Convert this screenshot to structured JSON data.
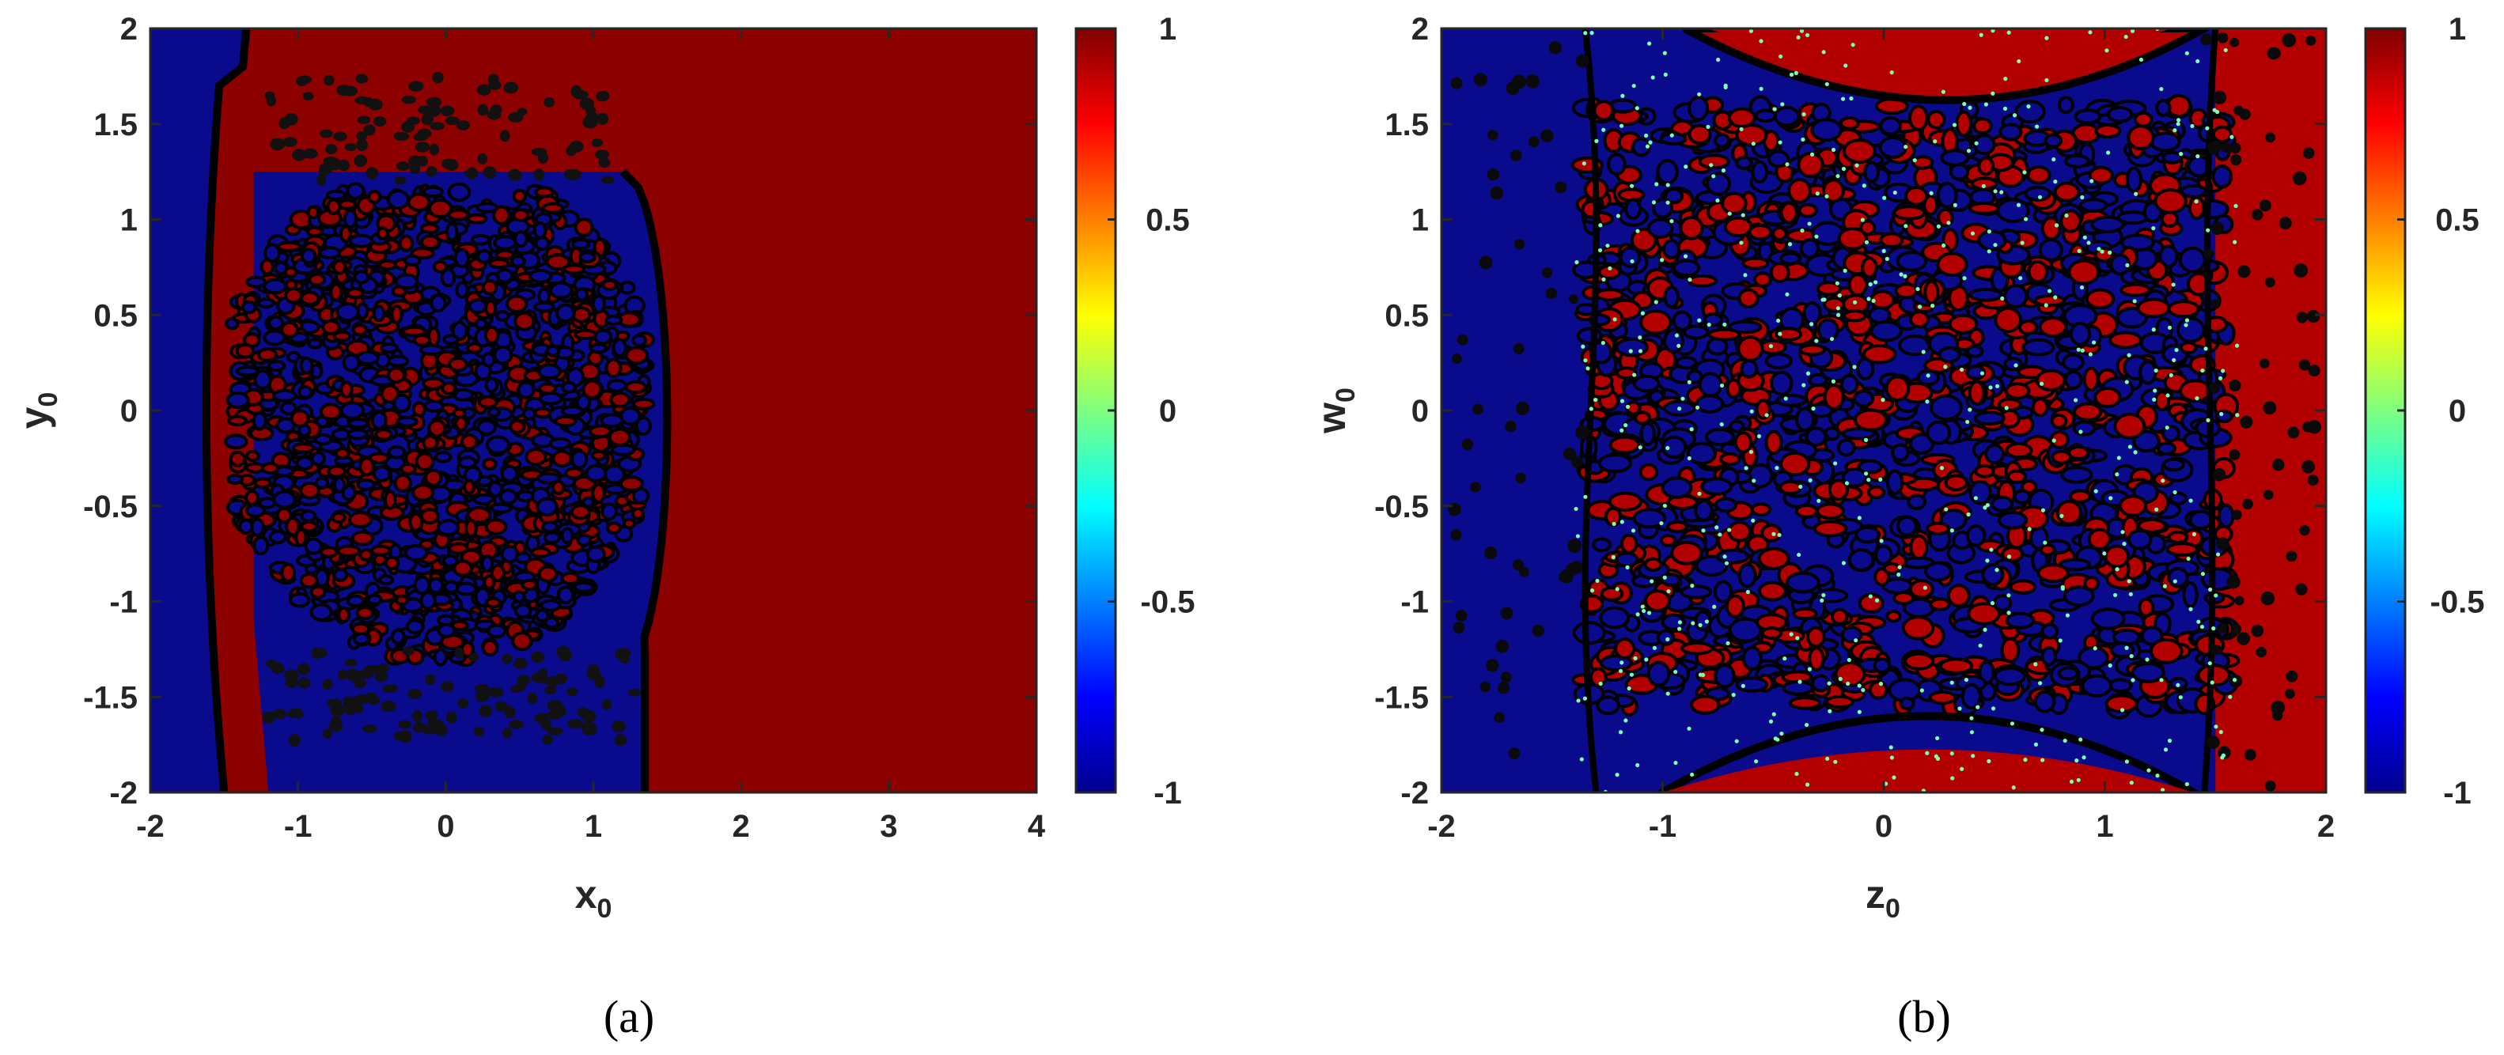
{
  "captions": [
    "(a)",
    "(b)"
  ],
  "chart_data": [
    {
      "type": "heatmap",
      "panel": "a",
      "title": "",
      "xlabel": "x0",
      "ylabel": "y0",
      "xlim": [
        -2,
        4
      ],
      "ylim": [
        -2,
        2
      ],
      "x_ticks": [
        "-2",
        "-1",
        "0",
        "1",
        "2",
        "3",
        "4"
      ],
      "y_ticks": [
        "2",
        "1.5",
        "1",
        "0.5",
        "0",
        "-0.5",
        "-1",
        "-1.5",
        "-2"
      ],
      "colorbar": {
        "min": -1,
        "max": 1,
        "colormap": "jet",
        "ticks": [
          "1",
          "0.5",
          "0",
          "-0.5",
          "-1"
        ]
      },
      "values_present": [
        -1,
        1
      ],
      "colors": {
        "low": "#0a0a8c",
        "high": "#8c0000",
        "boundary": "#000000"
      },
      "regions": [
        {
          "value": -1,
          "description": "left band x0 < about -1.5"
        },
        {
          "value": 1,
          "description": "right band x0 > about 1.5"
        },
        {
          "value": "mixed",
          "description": "fractal basin boundary roughly -1.5 < x0 < 1.5, -1.7 < y0 < 1.7"
        }
      ]
    },
    {
      "type": "heatmap",
      "panel": "b",
      "title": "",
      "xlabel": "z0",
      "ylabel": "w0",
      "xlim": [
        -2,
        2
      ],
      "ylim": [
        -2,
        2
      ],
      "x_ticks": [
        "-2",
        "-1",
        "0",
        "1",
        "2"
      ],
      "y_ticks": [
        "2",
        "1.5",
        "1",
        "0.5",
        "0",
        "-0.5",
        "-1",
        "-1.5",
        "-2"
      ],
      "colorbar": {
        "min": -1,
        "max": 1,
        "colormap": "jet",
        "ticks": [
          "1",
          "0.5",
          "0",
          "-0.5",
          "-1"
        ]
      },
      "values_present": [
        -1,
        0,
        1
      ],
      "colors": {
        "low": "#0a0a8c",
        "high": "#b20000",
        "boundary": "#000000",
        "zero_dots": "#7cffb0"
      },
      "regions": [
        {
          "value": -1,
          "description": "left band z0 < about -1.3"
        },
        {
          "value": 1,
          "description": "right band z0 > about 1.5"
        },
        {
          "value": 1,
          "description": "upper arc near w0 = 1.6 to 2"
        },
        {
          "value": -1,
          "description": "lower arc near w0 = -1.6 to -2"
        },
        {
          "value": "mixed",
          "description": "fractal interleaved region between"
        }
      ]
    }
  ]
}
